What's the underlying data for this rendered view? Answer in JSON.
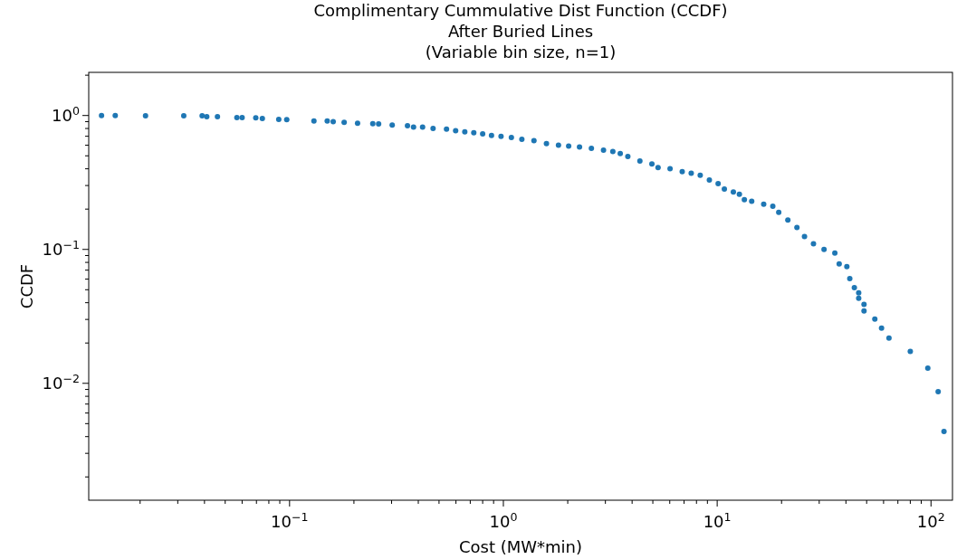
{
  "chart_data": {
    "type": "scatter",
    "title": "Complimentary Cummulative Dist Function (CCDF)",
    "subtitle": "After Buried Lines\n(Variable bin size, n=1)",
    "xlabel": "Cost (MW*min)",
    "ylabel": "CCDF",
    "log": "xy",
    "grid": false,
    "marker": "circle",
    "xlim": [
      0.0115,
      126
    ],
    "ylim": [
      0.00134,
      2.1
    ],
    "xticks": [
      {
        "value": 0.02,
        "label": null
      },
      {
        "value": 0.03,
        "label": null
      },
      {
        "value": 0.04,
        "label": null
      },
      {
        "value": 0.05,
        "label": null
      },
      {
        "value": 0.06,
        "label": null
      },
      {
        "value": 0.07,
        "label": null
      },
      {
        "value": 0.08,
        "label": null
      },
      {
        "value": 0.09,
        "label": null
      },
      {
        "value": 0.1,
        "label": "10$^{−1}$"
      },
      {
        "value": 0.2,
        "label": null
      },
      {
        "value": 0.3,
        "label": null
      },
      {
        "value": 0.4,
        "label": null
      },
      {
        "value": 0.5,
        "label": null
      },
      {
        "value": 0.6,
        "label": null
      },
      {
        "value": 0.7,
        "label": null
      },
      {
        "value": 0.8,
        "label": null
      },
      {
        "value": 0.9,
        "label": null
      },
      {
        "value": 1,
        "label": "10$^{0}$"
      },
      {
        "value": 2,
        "label": null
      },
      {
        "value": 3,
        "label": null
      },
      {
        "value": 4,
        "label": null
      },
      {
        "value": 5,
        "label": null
      },
      {
        "value": 6,
        "label": null
      },
      {
        "value": 7,
        "label": null
      },
      {
        "value": 8,
        "label": null
      },
      {
        "value": 9,
        "label": null
      },
      {
        "value": 10,
        "label": "10$^{1}$"
      },
      {
        "value": 20,
        "label": null
      },
      {
        "value": 30,
        "label": null
      },
      {
        "value": 40,
        "label": null
      },
      {
        "value": 50,
        "label": null
      },
      {
        "value": 60,
        "label": null
      },
      {
        "value": 70,
        "label": null
      },
      {
        "value": 80,
        "label": null
      },
      {
        "value": 90,
        "label": null
      },
      {
        "value": 100,
        "label": "10$^{2}$"
      }
    ],
    "yticks": [
      {
        "value": 0.002,
        "label": null
      },
      {
        "value": 0.003,
        "label": null
      },
      {
        "value": 0.004,
        "label": null
      },
      {
        "value": 0.005,
        "label": null
      },
      {
        "value": 0.006,
        "label": null
      },
      {
        "value": 0.007,
        "label": null
      },
      {
        "value": 0.008,
        "label": null
      },
      {
        "value": 0.009,
        "label": null
      },
      {
        "value": 0.01,
        "label": "10$^{−2}$"
      },
      {
        "value": 0.02,
        "label": null
      },
      {
        "value": 0.03,
        "label": null
      },
      {
        "value": 0.04,
        "label": null
      },
      {
        "value": 0.05,
        "label": null
      },
      {
        "value": 0.06,
        "label": null
      },
      {
        "value": 0.07,
        "label": null
      },
      {
        "value": 0.08,
        "label": null
      },
      {
        "value": 0.09,
        "label": null
      },
      {
        "value": 0.1,
        "label": "10$^{−1}$"
      },
      {
        "value": 0.2,
        "label": null
      },
      {
        "value": 0.3,
        "label": null
      },
      {
        "value": 0.4,
        "label": null
      },
      {
        "value": 0.5,
        "label": null
      },
      {
        "value": 0.6,
        "label": null
      },
      {
        "value": 0.7,
        "label": null
      },
      {
        "value": 0.8,
        "label": null
      },
      {
        "value": 0.9,
        "label": null
      },
      {
        "value": 1,
        "label": "10$^{0}$"
      },
      {
        "value": 2,
        "label": null
      }
    ],
    "x": [
      0.0132,
      0.0153,
      0.0212,
      0.032,
      0.039,
      0.041,
      0.046,
      0.0567,
      0.06,
      0.0695,
      0.0746,
      0.089,
      0.097,
      0.13,
      0.15,
      0.16,
      0.18,
      0.208,
      0.245,
      0.261,
      0.302,
      0.356,
      0.38,
      0.419,
      0.469,
      0.542,
      0.598,
      0.66,
      0.727,
      0.8,
      0.88,
      0.975,
      1.09,
      1.22,
      1.39,
      1.59,
      1.81,
      2.02,
      2.27,
      2.58,
      2.94,
      3.25,
      3.52,
      3.82,
      4.35,
      4.95,
      5.29,
      6.02,
      6.86,
      7.56,
      8.33,
      9.19,
      10.1,
      10.8,
      11.9,
      12.7,
      13.4,
      14.5,
      16.5,
      18.2,
      19.4,
      21.4,
      23.6,
      25.6,
      28.2,
      31.6,
      35.5,
      37.2,
      40.4,
      41.7,
      43.8,
      45.9,
      45.9,
      48.6,
      48.6,
      54.6,
      58.7,
      63.6,
      80,
      96.6,
      108,
      115
    ],
    "series": [
      {
        "color": "#1f77b4",
        "values": [
          1.0,
          1.0,
          0.995,
          0.995,
          0.995,
          0.98,
          0.98,
          0.965,
          0.965,
          0.96,
          0.95,
          0.935,
          0.93,
          0.91,
          0.91,
          0.9,
          0.89,
          0.875,
          0.87,
          0.865,
          0.85,
          0.84,
          0.82,
          0.82,
          0.8,
          0.79,
          0.77,
          0.755,
          0.745,
          0.73,
          0.71,
          0.7,
          0.685,
          0.664,
          0.65,
          0.617,
          0.6,
          0.592,
          0.583,
          0.569,
          0.551,
          0.539,
          0.52,
          0.494,
          0.457,
          0.434,
          0.408,
          0.401,
          0.381,
          0.371,
          0.358,
          0.33,
          0.31,
          0.282,
          0.268,
          0.258,
          0.235,
          0.229,
          0.218,
          0.21,
          0.189,
          0.166,
          0.146,
          0.125,
          0.11,
          0.1,
          0.094,
          0.078,
          0.0744,
          0.0605,
          0.0518,
          0.0474,
          0.0432,
          0.0389,
          0.0347,
          0.0302,
          0.0258,
          0.0218,
          0.0173,
          0.013,
          0.00865,
          0.00437
        ]
      }
    ]
  }
}
